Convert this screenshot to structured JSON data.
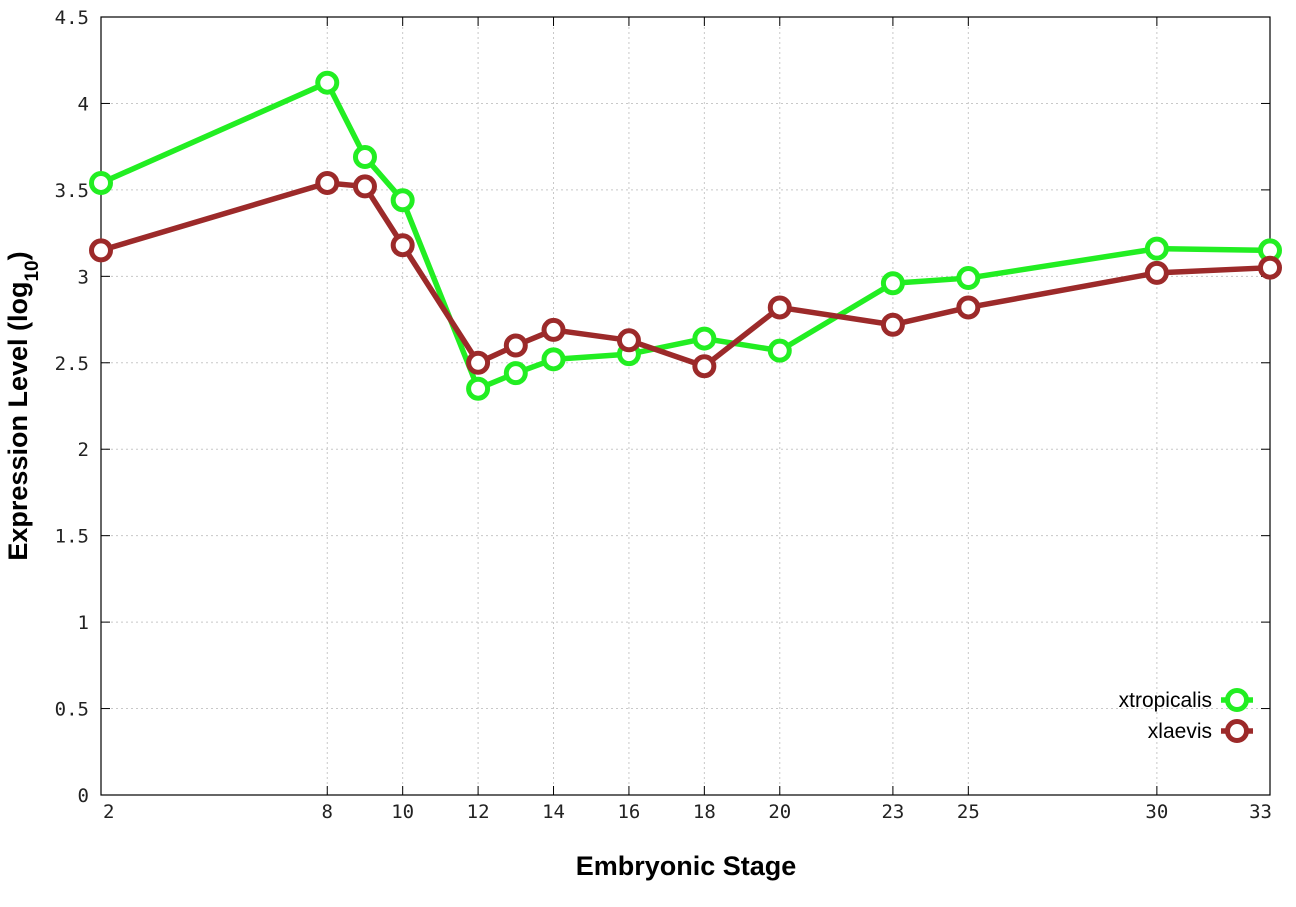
{
  "chart_data": {
    "type": "line",
    "title": "",
    "xlabel": "Embryonic Stage",
    "ylabel": "Expression Level (log10)",
    "ylabel_main": "Expression Level (log",
    "ylabel_sub": "10",
    "ylabel_close": ")",
    "xlim": [
      2,
      33
    ],
    "ylim": [
      0,
      4.5
    ],
    "x_ticks": [
      2,
      8,
      10,
      12,
      14,
      16,
      18,
      20,
      23,
      25,
      30,
      33
    ],
    "x_tick_labels": [
      "2",
      "8",
      "10",
      "12",
      "14",
      "16",
      "18",
      "20",
      "23",
      "25",
      "30",
      "33"
    ],
    "y_ticks": [
      0,
      0.5,
      1,
      1.5,
      2,
      2.5,
      3,
      3.5,
      4,
      4.5
    ],
    "y_tick_labels": [
      "0",
      "0.5",
      "1",
      "1.5",
      "2",
      "2.5",
      "3",
      "3.5",
      "4",
      "4.5"
    ],
    "grid": true,
    "legend_position": "bottom-right",
    "x": [
      2,
      8,
      9,
      10,
      12,
      13,
      14,
      16,
      18,
      20,
      23,
      25,
      30,
      33
    ],
    "series": [
      {
        "name": "xtropicalis",
        "color": "#22ee22",
        "values": [
          3.54,
          4.12,
          3.69,
          3.44,
          2.35,
          2.44,
          2.52,
          2.55,
          2.64,
          2.57,
          2.96,
          2.99,
          3.16,
          3.15
        ]
      },
      {
        "name": "xlaevis",
        "color": "#9c2a2a",
        "values": [
          3.15,
          3.54,
          3.52,
          3.18,
          2.5,
          2.6,
          2.69,
          2.63,
          2.48,
          2.82,
          2.72,
          2.82,
          3.02,
          3.05
        ]
      }
    ]
  }
}
